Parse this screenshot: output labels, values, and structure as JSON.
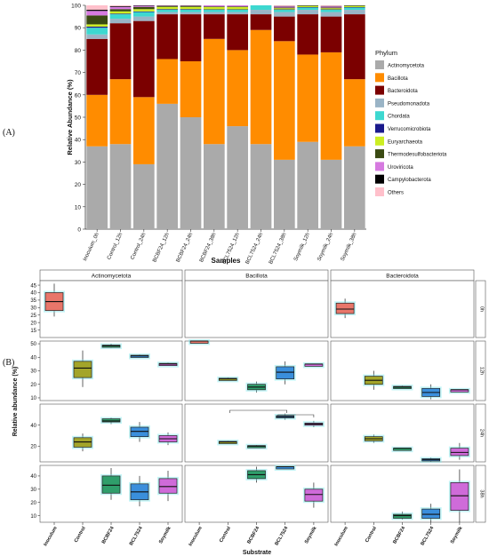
{
  "panel_labels": {
    "a": "(A)",
    "b": "(B)"
  },
  "chart_data": [
    {
      "type": "bar",
      "stacked": true,
      "xlabel": "Samples",
      "ylabel": "Relative Abundance (%)",
      "ylim": [
        0,
        100
      ],
      "yticks": [
        "0",
        "10",
        "20",
        "30",
        "40",
        "50",
        "60",
        "70",
        "80",
        "90",
        "100"
      ],
      "categories": [
        "Inoculum_0h",
        "Control_12h",
        "Control_24h",
        "BCBF24_12h",
        "BCBF24_24h",
        "BCBF24_38h",
        "BCL7524_12h",
        "BCL7524_24h",
        "BCL7524_38h",
        "Soymilk_12h",
        "Soymilk_24h",
        "Soymilk_38h"
      ],
      "legend": {
        "title": "Phylum",
        "position": "right"
      },
      "series": [
        {
          "name": "Actinomycetota",
          "color": "#aaaaaa",
          "values": [
            37,
            38,
            29,
            56,
            50,
            38,
            46,
            38,
            31,
            39,
            31,
            37
          ]
        },
        {
          "name": "Bacillota",
          "color": "#ff8c00",
          "values": [
            23,
            29,
            30,
            20,
            25,
            47,
            34,
            51,
            53,
            39,
            48,
            30
          ]
        },
        {
          "name": "Bacteroidota",
          "color": "#7b0000",
          "values": [
            25,
            25,
            34,
            20,
            21,
            11,
            16,
            7,
            11,
            18,
            16,
            29
          ]
        },
        {
          "name": "Pseudomonadota",
          "color": "#9ab4c6",
          "values": [
            2,
            2,
            2,
            1,
            1,
            1,
            1,
            2,
            2,
            2,
            2,
            2
          ]
        },
        {
          "name": "Chordata",
          "color": "#3dd8d0",
          "values": [
            3,
            2,
            2,
            1,
            1,
            1,
            1,
            2,
            1,
            1,
            1,
            1
          ]
        },
        {
          "name": "Verrucomicrobiota",
          "color": "#1a1a8c",
          "values": [
            0.5,
            0.3,
            0.3,
            0.3,
            0.3,
            0.2,
            0.2,
            0.2,
            0.2,
            0.2,
            0.2,
            0.2
          ]
        },
        {
          "name": "Euryarchaeota",
          "color": "#ccee22",
          "values": [
            1,
            1,
            1,
            1,
            1,
            1,
            1,
            0.5,
            0.5,
            0.5,
            0.5,
            0.5
          ]
        },
        {
          "name": "Thermodesulfobacteriota",
          "color": "#3a4a12",
          "values": [
            4,
            1,
            1,
            0.5,
            0.5,
            0.3,
            0.3,
            0.3,
            0.3,
            0.3,
            0.3,
            0.3
          ]
        },
        {
          "name": "Uroviricota",
          "color": "#d67ae0",
          "values": [
            2,
            1,
            0.5,
            0.2,
            0.2,
            0.5,
            0.5,
            0.5,
            0.5,
            0.5,
            0.5,
            0.5
          ]
        },
        {
          "name": "Campylobacterota",
          "color": "#000000",
          "values": [
            0.5,
            0.3,
            0.3,
            0.2,
            0.2,
            0.2,
            0.2,
            0.2,
            0.2,
            0.2,
            0.2,
            0.2
          ]
        },
        {
          "name": "Others",
          "color": "#ffc0cb",
          "values": [
            2,
            0.4,
            0.9,
            0.6,
            0.8,
            0,
            0.8,
            0,
            0.3,
            0,
            0.3,
            0
          ]
        }
      ]
    },
    {
      "type": "box",
      "xlabel": "Substrate",
      "ylabel": "Relative abundance (%)",
      "facet_columns": [
        "Actinomycetota",
        "Bacillota",
        "Bacteroidota"
      ],
      "facet_rows": [
        {
          "label": "0h",
          "ylim": [
            10,
            48
          ],
          "yticks": [
            15,
            20,
            25,
            30,
            35,
            40,
            45
          ]
        },
        {
          "label": "12h",
          "ylim": [
            8,
            52
          ],
          "yticks": [
            10,
            20,
            30,
            40,
            50
          ]
        },
        {
          "label": "24h",
          "ylim": [
            5,
            60
          ],
          "yticks": [
            20,
            40
          ]
        },
        {
          "label": "38h",
          "ylim": [
            5,
            48
          ],
          "yticks": [
            10,
            20,
            30,
            40
          ]
        }
      ],
      "categories": [
        "Inoculum",
        "Control",
        "BCBF24",
        "BCL7524",
        "Soymilk"
      ],
      "category_colors": {
        "Inoculum": "#e8766a",
        "Control": "#a3a52a",
        "BCBF24": "#2f9e6b",
        "BCL7524": "#3a8fdc",
        "Soymilk": "#cf6bd9"
      },
      "groups": [
        {
          "phylum": "Actinomycetota",
          "time": "0h",
          "sample": "Inoculum",
          "min": 24,
          "q1": 28,
          "median": 34,
          "q3": 40,
          "max": 46
        },
        {
          "phylum": "Actinomycetota",
          "time": "12h",
          "sample": "Control",
          "min": 18,
          "q1": 25,
          "median": 32,
          "q3": 37,
          "max": 45
        },
        {
          "phylum": "Actinomycetota",
          "time": "12h",
          "sample": "BCBF24",
          "min": 47,
          "q1": 48,
          "median": 48.5,
          "q3": 49,
          "max": 50
        },
        {
          "phylum": "Actinomycetota",
          "time": "12h",
          "sample": "BCL7524",
          "min": 40,
          "q1": 40.5,
          "median": 41,
          "q3": 41.5,
          "max": 42
        },
        {
          "phylum": "Actinomycetota",
          "time": "12h",
          "sample": "Soymilk",
          "min": 34,
          "q1": 34.5,
          "median": 35,
          "q3": 35.5,
          "max": 36
        },
        {
          "phylum": "Actinomycetota",
          "time": "24h",
          "sample": "Control",
          "min": 15,
          "q1": 19,
          "median": 24,
          "q3": 28,
          "max": 32
        },
        {
          "phylum": "Actinomycetota",
          "time": "24h",
          "sample": "BCBF24",
          "min": 41,
          "q1": 43,
          "median": 44,
          "q3": 46,
          "max": 47
        },
        {
          "phylum": "Actinomycetota",
          "time": "24h",
          "sample": "BCL7524",
          "min": 24,
          "q1": 29,
          "median": 34,
          "q3": 38,
          "max": 43
        },
        {
          "phylum": "Actinomycetota",
          "time": "24h",
          "sample": "Soymilk",
          "min": 21,
          "q1": 24,
          "median": 27,
          "q3": 30,
          "max": 33
        },
        {
          "phylum": "Actinomycetota",
          "time": "38h",
          "sample": "BCBF24",
          "min": 22,
          "q1": 27,
          "median": 33,
          "q3": 40,
          "max": 46
        },
        {
          "phylum": "Actinomycetota",
          "time": "38h",
          "sample": "BCL7524",
          "min": 17,
          "q1": 22,
          "median": 28,
          "q3": 34,
          "max": 40
        },
        {
          "phylum": "Actinomycetota",
          "time": "38h",
          "sample": "Soymilk",
          "min": 21,
          "q1": 27,
          "median": 32,
          "q3": 38,
          "max": 44
        },
        {
          "phylum": "Bacillota",
          "time": "0h",
          "sample": "Inoculum",
          "min": null,
          "q1": null,
          "median": null,
          "q3": null,
          "max": null
        },
        {
          "phylum": "Bacillota",
          "time": "12h",
          "sample": "Inoculum",
          "min": 52,
          "q1": 52,
          "median": 52,
          "q3": 52,
          "max": 52
        },
        {
          "phylum": "Bacillota",
          "time": "12h",
          "sample": "Control",
          "min": 23,
          "q1": 23.5,
          "median": 24,
          "q3": 24.5,
          "max": 25
        },
        {
          "phylum": "Bacillota",
          "time": "12h",
          "sample": "BCBF24",
          "min": 14,
          "q1": 16,
          "median": 18,
          "q3": 20,
          "max": 22
        },
        {
          "phylum": "Bacillota",
          "time": "12h",
          "sample": "BCL7524",
          "min": 20,
          "q1": 24,
          "median": 29,
          "q3": 33,
          "max": 37
        },
        {
          "phylum": "Bacillota",
          "time": "12h",
          "sample": "Soymilk",
          "min": 35,
          "q1": 35,
          "median": 35,
          "q3": 35,
          "max": 35
        },
        {
          "phylum": "Bacillota",
          "time": "24h",
          "sample": "Control",
          "min": 23,
          "q1": 23.5,
          "median": 24,
          "q3": 24.5,
          "max": 25
        },
        {
          "phylum": "Bacillota",
          "time": "24h",
          "sample": "BCBF24",
          "min": 19,
          "q1": 19.5,
          "median": 20,
          "q3": 20.5,
          "max": 21
        },
        {
          "phylum": "Bacillota",
          "time": "24h",
          "sample": "BCL7524",
          "min": 45,
          "q1": 47,
          "median": 48,
          "q3": 49,
          "max": 51
        },
        {
          "phylum": "Bacillota",
          "time": "24h",
          "sample": "Soymilk",
          "min": 38,
          "q1": 40,
          "median": 41,
          "q3": 42,
          "max": 44
        },
        {
          "phylum": "Bacillota",
          "time": "38h",
          "sample": "BCBF24",
          "min": 35,
          "q1": 38,
          "median": 41,
          "q3": 44,
          "max": 47
        },
        {
          "phylum": "Bacillota",
          "time": "38h",
          "sample": "BCL7524",
          "min": 47,
          "q1": 47,
          "median": 47,
          "q3": 47,
          "max": 47
        },
        {
          "phylum": "Bacillota",
          "time": "38h",
          "sample": "Soymilk",
          "min": 16,
          "q1": 21,
          "median": 26,
          "q3": 30,
          "max": 35
        },
        {
          "phylum": "Bacteroidota",
          "time": "0h",
          "sample": "Inoculum",
          "min": 23,
          "q1": 26,
          "median": 29,
          "q3": 33,
          "max": 36
        },
        {
          "phylum": "Bacteroidota",
          "time": "12h",
          "sample": "Control",
          "min": 16,
          "q1": 20,
          "median": 23,
          "q3": 26,
          "max": 30
        },
        {
          "phylum": "Bacteroidota",
          "time": "12h",
          "sample": "BCBF24",
          "min": 17,
          "q1": 17.5,
          "median": 18,
          "q3": 18.5,
          "max": 19
        },
        {
          "phylum": "Bacteroidota",
          "time": "12h",
          "sample": "BCL7524",
          "min": 9,
          "q1": 11,
          "median": 14,
          "q3": 17,
          "max": 20
        },
        {
          "phylum": "Bacteroidota",
          "time": "12h",
          "sample": "Soymilk",
          "min": 16,
          "q1": 16,
          "median": 16,
          "q3": 16,
          "max": 16
        },
        {
          "phylum": "Bacteroidota",
          "time": "24h",
          "sample": "Control",
          "min": 23,
          "q1": 25,
          "median": 27,
          "q3": 29,
          "max": 31
        },
        {
          "phylum": "Bacteroidota",
          "time": "24h",
          "sample": "BCBF24",
          "min": 18,
          "q1": 18,
          "median": 18,
          "q3": 18,
          "max": 18
        },
        {
          "phylum": "Bacteroidota",
          "time": "24h",
          "sample": "BCL7524",
          "min": 5,
          "q1": 6,
          "median": 7,
          "q3": 8,
          "max": 9
        },
        {
          "phylum": "Bacteroidota",
          "time": "24h",
          "sample": "Soymilk",
          "min": 7,
          "q1": 11,
          "median": 14,
          "q3": 18,
          "max": 23
        },
        {
          "phylum": "Bacteroidota",
          "time": "38h",
          "sample": "BCBF24",
          "min": 7,
          "q1": 8,
          "median": 10,
          "q3": 11,
          "max": 13
        },
        {
          "phylum": "Bacteroidota",
          "time": "38h",
          "sample": "BCL7524",
          "min": 5,
          "q1": 8,
          "median": 11,
          "q3": 15,
          "max": 19
        },
        {
          "phylum": "Bacteroidota",
          "time": "38h",
          "sample": "Soymilk",
          "min": 5,
          "q1": 14,
          "median": 25,
          "q3": 35,
          "max": 45
        }
      ]
    }
  ]
}
